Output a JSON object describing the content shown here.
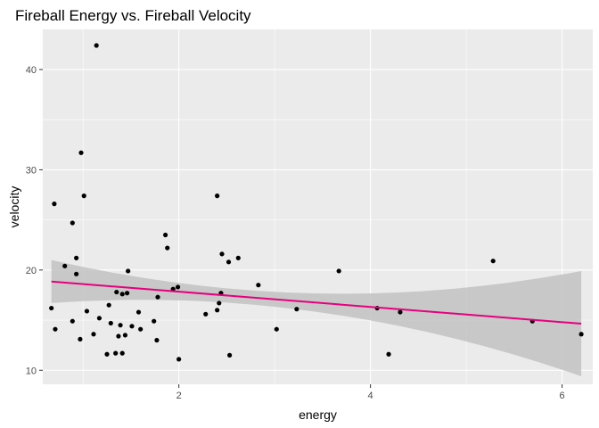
{
  "chart_data": {
    "type": "scatter",
    "title": "Fireball Energy vs. Fireball Velocity",
    "xlabel": "energy",
    "ylabel": "velocity",
    "xlim": [
      0.58,
      6.32
    ],
    "ylim": [
      8.6,
      44.0
    ],
    "x_ticks": [
      2,
      4,
      6
    ],
    "y_ticks": [
      10,
      20,
      30,
      40
    ],
    "x_minor": [
      1,
      3,
      5
    ],
    "y_minor": [
      15,
      25,
      35
    ],
    "grid": true,
    "background": "#ebebeb",
    "grid_color": "#ffffff",
    "point_color": "#000000",
    "fit_color": "#e6007e",
    "band_color": "#c2c2c2",
    "points": [
      {
        "x": 0.67,
        "y": 16.2
      },
      {
        "x": 0.7,
        "y": 26.6
      },
      {
        "x": 0.71,
        "y": 14.1
      },
      {
        "x": 0.81,
        "y": 20.4
      },
      {
        "x": 0.89,
        "y": 24.7
      },
      {
        "x": 0.89,
        "y": 14.9
      },
      {
        "x": 0.93,
        "y": 21.2
      },
      {
        "x": 0.93,
        "y": 19.6
      },
      {
        "x": 0.97,
        "y": 13.1
      },
      {
        "x": 0.98,
        "y": 31.7
      },
      {
        "x": 1.01,
        "y": 27.4
      },
      {
        "x": 1.04,
        "y": 15.9
      },
      {
        "x": 1.11,
        "y": 13.6
      },
      {
        "x": 1.14,
        "y": 42.4
      },
      {
        "x": 1.17,
        "y": 15.2
      },
      {
        "x": 1.25,
        "y": 11.6
      },
      {
        "x": 1.27,
        "y": 16.5
      },
      {
        "x": 1.29,
        "y": 14.7
      },
      {
        "x": 1.34,
        "y": 11.7
      },
      {
        "x": 1.35,
        "y": 17.8
      },
      {
        "x": 1.37,
        "y": 13.4
      },
      {
        "x": 1.39,
        "y": 14.5
      },
      {
        "x": 1.41,
        "y": 11.7
      },
      {
        "x": 1.41,
        "y": 17.6
      },
      {
        "x": 1.44,
        "y": 13.5
      },
      {
        "x": 1.46,
        "y": 17.7
      },
      {
        "x": 1.47,
        "y": 19.9
      },
      {
        "x": 1.51,
        "y": 14.4
      },
      {
        "x": 1.58,
        "y": 15.8
      },
      {
        "x": 1.6,
        "y": 14.1
      },
      {
        "x": 1.74,
        "y": 14.9
      },
      {
        "x": 1.77,
        "y": 13.0
      },
      {
        "x": 1.78,
        "y": 17.3
      },
      {
        "x": 1.86,
        "y": 23.5
      },
      {
        "x": 1.88,
        "y": 22.2
      },
      {
        "x": 1.94,
        "y": 18.1
      },
      {
        "x": 1.99,
        "y": 18.3
      },
      {
        "x": 2.0,
        "y": 11.1
      },
      {
        "x": 2.28,
        "y": 15.6
      },
      {
        "x": 2.4,
        "y": 27.4
      },
      {
        "x": 2.4,
        "y": 16.0
      },
      {
        "x": 2.42,
        "y": 16.7
      },
      {
        "x": 2.44,
        "y": 17.7
      },
      {
        "x": 2.45,
        "y": 21.6
      },
      {
        "x": 2.52,
        "y": 20.8
      },
      {
        "x": 2.53,
        "y": 11.5
      },
      {
        "x": 2.62,
        "y": 21.2
      },
      {
        "x": 2.83,
        "y": 18.5
      },
      {
        "x": 3.02,
        "y": 14.1
      },
      {
        "x": 3.23,
        "y": 16.1
      },
      {
        "x": 3.67,
        "y": 19.9
      },
      {
        "x": 4.07,
        "y": 16.2
      },
      {
        "x": 4.19,
        "y": 11.6
      },
      {
        "x": 4.31,
        "y": 15.8
      },
      {
        "x": 5.28,
        "y": 20.9
      },
      {
        "x": 5.69,
        "y": 14.9
      },
      {
        "x": 6.2,
        "y": 13.6
      }
    ],
    "fit": {
      "x": [
        0.67,
        6.2
      ],
      "y": [
        18.85,
        14.65
      ],
      "band_upper": [
        21.0,
        19.9
      ],
      "band_lower": [
        16.7,
        9.4
      ],
      "band_center_x": 2.3,
      "band_center_halfwidth": 0.75
    }
  }
}
